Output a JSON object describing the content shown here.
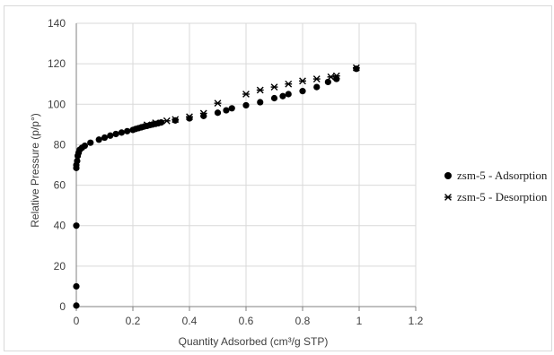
{
  "chart_data": {
    "type": "scatter",
    "xlabel": "Quantity Adsorbed (cm³/g STP)",
    "ylabel": "Relative Pressure (p/p°)",
    "xlim": [
      0,
      1.2
    ],
    "ylim": [
      0,
      140
    ],
    "x_ticks": [
      "0",
      "0.2",
      "0.4",
      "0.6",
      "0.8",
      "1",
      "1.2"
    ],
    "y_ticks": [
      "0",
      "20",
      "40",
      "60",
      "80",
      "100",
      "120",
      "140"
    ],
    "grid": "vertical-and-horizontal",
    "legend_position": "right",
    "series": [
      {
        "name": "zsm-5 - Adsorption",
        "marker": "circle",
        "color": "#000000",
        "points": [
          [
            0.0,
            0.5
          ],
          [
            0.0,
            10
          ],
          [
            0.0,
            40
          ],
          [
            0.0,
            68.5
          ],
          [
            0.0,
            70
          ],
          [
            0.003,
            72
          ],
          [
            0.005,
            74.5
          ],
          [
            0.008,
            76
          ],
          [
            0.012,
            77.5
          ],
          [
            0.02,
            78.5
          ],
          [
            0.03,
            79.5
          ],
          [
            0.05,
            81
          ],
          [
            0.08,
            82.5
          ],
          [
            0.1,
            83.5
          ],
          [
            0.12,
            84.5
          ],
          [
            0.14,
            85.3
          ],
          [
            0.16,
            86
          ],
          [
            0.18,
            86.7
          ],
          [
            0.2,
            87.3
          ],
          [
            0.21,
            87.8
          ],
          [
            0.22,
            88.2
          ],
          [
            0.23,
            88.6
          ],
          [
            0.24,
            89
          ],
          [
            0.25,
            89.3
          ],
          [
            0.26,
            89.7
          ],
          [
            0.27,
            90
          ],
          [
            0.28,
            90.3
          ],
          [
            0.29,
            90.6
          ],
          [
            0.3,
            91
          ],
          [
            0.35,
            92
          ],
          [
            0.4,
            93
          ],
          [
            0.45,
            94.2
          ],
          [
            0.5,
            95.8
          ],
          [
            0.53,
            97
          ],
          [
            0.55,
            98
          ],
          [
            0.6,
            99.5
          ],
          [
            0.65,
            101
          ],
          [
            0.7,
            103
          ],
          [
            0.73,
            104
          ],
          [
            0.75,
            105
          ],
          [
            0.8,
            106.5
          ],
          [
            0.85,
            108.5
          ],
          [
            0.89,
            111
          ],
          [
            0.92,
            112.5
          ],
          [
            0.99,
            117.5
          ]
        ]
      },
      {
        "name": "zsm-5 - Desorption",
        "marker": "star",
        "color": "#000000",
        "points": [
          [
            0.25,
            89.8
          ],
          [
            0.28,
            90.8
          ],
          [
            0.32,
            91.8
          ],
          [
            0.35,
            92.5
          ],
          [
            0.4,
            93.8
          ],
          [
            0.45,
            95.5
          ],
          [
            0.5,
            100.5
          ],
          [
            0.6,
            105
          ],
          [
            0.65,
            107
          ],
          [
            0.7,
            108.5
          ],
          [
            0.75,
            110
          ],
          [
            0.8,
            111.5
          ],
          [
            0.85,
            112.5
          ],
          [
            0.9,
            113.5
          ],
          [
            0.92,
            114
          ],
          [
            0.99,
            118
          ]
        ]
      }
    ]
  }
}
